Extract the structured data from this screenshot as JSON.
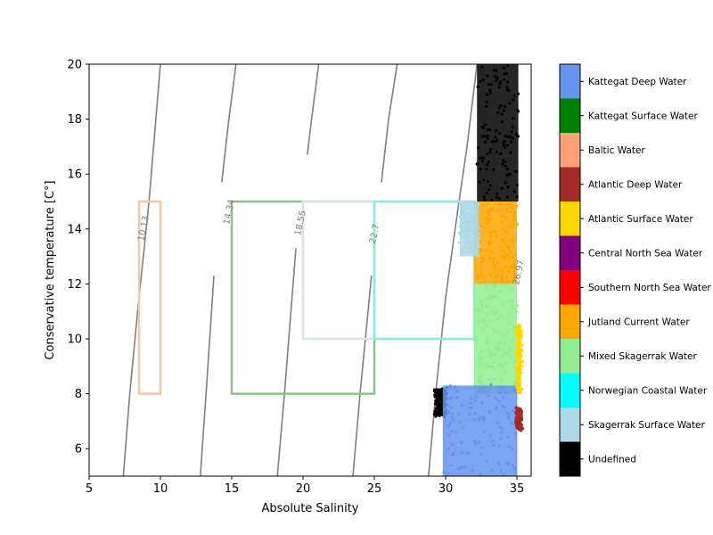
{
  "chart_data": {
    "type": "scatter",
    "title": "",
    "xlabel": "Absolute Salinity",
    "ylabel": "Conservative temperature [C°]",
    "xlim": [
      5,
      36
    ],
    "ylim": [
      5,
      20
    ],
    "xticks": [
      5,
      10,
      15,
      20,
      25,
      30,
      35
    ],
    "yticks": [
      6,
      8,
      10,
      12,
      14,
      16,
      18,
      20
    ],
    "grid": false,
    "legend": "right-colorbar",
    "density_contours": [
      {
        "label": "10.13",
        "points": [
          [
            7.4,
            5
          ],
          [
            7.85,
            8
          ],
          [
            8.4,
            11
          ],
          [
            9.2,
            15
          ],
          [
            10,
            20
          ]
        ],
        "label_at": [
          9.0,
          14.0
        ]
      },
      {
        "label": "14.34",
        "points": [
          [
            12.8,
            5
          ],
          [
            13.2,
            8
          ],
          [
            13.75,
            12.3
          ]
        ],
        "points2": [
          [
            14.3,
            15.7
          ],
          [
            14.8,
            18
          ],
          [
            15.3,
            20
          ]
        ],
        "label_at": [
          15.0,
          14.6
        ]
      },
      {
        "label": "18.55",
        "points": [
          [
            18.2,
            5
          ],
          [
            18.7,
            8
          ],
          [
            19.5,
            13.3
          ]
        ],
        "points2": [
          [
            20.3,
            16.7
          ],
          [
            20.6,
            18
          ],
          [
            21.1,
            20
          ]
        ],
        "label_at": [
          20.0,
          14.2
        ]
      },
      {
        "label": "22.7",
        "points": [
          [
            23.5,
            5
          ],
          [
            24,
            8
          ],
          [
            24.8,
            12.3
          ]
        ],
        "points2": [
          [
            25.5,
            15.7
          ],
          [
            26,
            18
          ],
          [
            26.6,
            20
          ]
        ],
        "label_at": [
          25.2,
          13.8
        ]
      },
      {
        "label": "26.97",
        "points": [
          [
            28.8,
            5
          ],
          [
            29.3,
            8
          ],
          [
            30.0,
            11.5
          ],
          [
            30.8,
            14.5
          ],
          [
            31.5,
            17
          ],
          [
            32.2,
            20
          ]
        ],
        "label_at": [
          35.3,
          12.4
        ]
      }
    ],
    "water_mass_boxes": [
      {
        "name": "Baltic Water",
        "smin": 8.5,
        "smax": 10,
        "tmin": 8,
        "tmax": 15,
        "color": "#f5c6a8"
      },
      {
        "name": "Kattegat Surface Water",
        "smin": 15,
        "smax": 25,
        "tmin": 8,
        "tmax": 15,
        "color": "#8fbf8f"
      },
      {
        "name": "Skagerrak Surface Water",
        "smin": 20,
        "smax": 32,
        "tmin": 10,
        "tmax": 15,
        "color": "#cfe6ea"
      },
      {
        "name": "Norwegian Coastal Water",
        "smin": 25,
        "smax": 32,
        "tmin": 10,
        "tmax": 15,
        "color": "#8fe8e8"
      },
      {
        "name": "Kattegat Deep Water",
        "smin": 30,
        "smax": 35,
        "tmin": 5,
        "tmax": 8.2,
        "color": "#c8d6ee"
      }
    ],
    "data_clusters": [
      {
        "name": "Undefined",
        "color": "#000000",
        "smin": 32.2,
        "smax": 35.1,
        "tmin": 15,
        "tmax": 20
      },
      {
        "name": "Undefined",
        "color": "#000000",
        "smin": 29.3,
        "smax": 30.0,
        "tmin": 7.2,
        "tmax": 8.2
      },
      {
        "name": "Jutland Current Water",
        "color": "#ffa500",
        "smin": 32.0,
        "smax": 35.0,
        "tmin": 12,
        "tmax": 15
      },
      {
        "name": "Mixed Skagerrak Water",
        "color": "#90ee90",
        "smin": 32.0,
        "smax": 35.0,
        "tmin": 8,
        "tmax": 12
      },
      {
        "name": "Kattegat Deep Water",
        "color": "#6495ed",
        "smin": 29.8,
        "smax": 35.0,
        "tmin": 5,
        "tmax": 8.3
      },
      {
        "name": "Skagerrak Surface Water",
        "color": "#add8e6",
        "smin": 31.0,
        "smax": 32.3,
        "tmin": 13,
        "tmax": 15
      },
      {
        "name": "Atlantic Surface Water",
        "color": "#ffd700",
        "smin": 35.0,
        "smax": 35.3,
        "tmin": 8,
        "tmax": 10.5
      },
      {
        "name": "Atlantic Deep Water",
        "color": "#a52a2a",
        "smin": 35.0,
        "smax": 35.3,
        "tmin": 6.7,
        "tmax": 7.5
      }
    ],
    "colorbar": [
      {
        "name": "Undefined",
        "color": "#000000"
      },
      {
        "name": "Skagerrak Surface Water",
        "color": "#add8e6"
      },
      {
        "name": "Norwegian Coastal Water",
        "color": "#00ffff"
      },
      {
        "name": "Mixed Skagerrak Water",
        "color": "#90ee90"
      },
      {
        "name": "Jutland Current Water",
        "color": "#ffa500"
      },
      {
        "name": "Southern North Sea Water",
        "color": "#ff0000"
      },
      {
        "name": "Central North Sea Water",
        "color": "#800080"
      },
      {
        "name": "Atlantic Surface Water",
        "color": "#ffd700"
      },
      {
        "name": "Atlantic Deep Water",
        "color": "#a52a2a"
      },
      {
        "name": "Baltic Water",
        "color": "#ffa07a"
      },
      {
        "name": "Kattegat Surface Water",
        "color": "#008000"
      },
      {
        "name": "Kattegat Deep Water",
        "color": "#6495ed"
      }
    ]
  }
}
